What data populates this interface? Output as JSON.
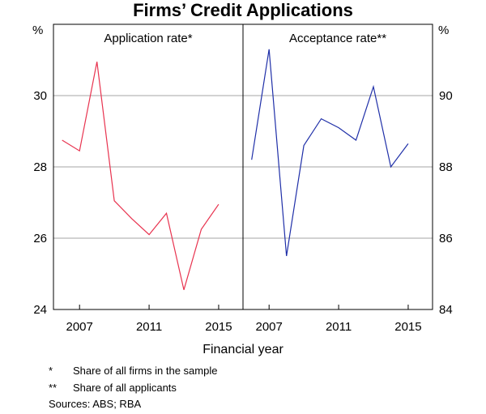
{
  "title": "Firms’ Credit Applications",
  "xlabel": "Financial year",
  "notes": [
    {
      "mark": "*",
      "text": "Share of all firms in the sample"
    },
    {
      "mark": "**",
      "text": "Share of all applicants"
    }
  ],
  "sources": "Sources:   ABS; RBA",
  "chart_data": [
    {
      "type": "line",
      "panel_label": "Application rate*",
      "ylabel_left": "%",
      "ylim": [
        24,
        32
      ],
      "yticks": [
        24,
        26,
        28,
        30
      ],
      "xlim": [
        2005.5,
        2016.4
      ],
      "xticks": [
        2007,
        2011,
        2015
      ],
      "grid": true,
      "color": "#e8334f",
      "series": [
        {
          "x": [
            2006,
            2007,
            2008,
            2009,
            2010,
            2011,
            2012,
            2013,
            2014,
            2015
          ],
          "values": [
            28.75,
            28.45,
            30.95,
            27.05,
            26.55,
            26.1,
            26.7,
            24.55,
            26.25,
            26.95
          ]
        }
      ]
    },
    {
      "type": "line",
      "panel_label": "Acceptance rate**",
      "ylabel_right": "%",
      "ylim": [
        84,
        92
      ],
      "yticks": [
        84,
        86,
        88,
        90
      ],
      "xlim": [
        2005.5,
        2016.4
      ],
      "xticks": [
        2007,
        2011,
        2015
      ],
      "grid": true,
      "color": "#1f2fa8",
      "series": [
        {
          "x": [
            2006,
            2007,
            2008,
            2009,
            2010,
            2011,
            2012,
            2013,
            2014,
            2015
          ],
          "values": [
            88.2,
            91.3,
            85.5,
            88.6,
            89.35,
            89.1,
            88.75,
            90.25,
            88.0,
            88.65
          ]
        }
      ]
    }
  ]
}
